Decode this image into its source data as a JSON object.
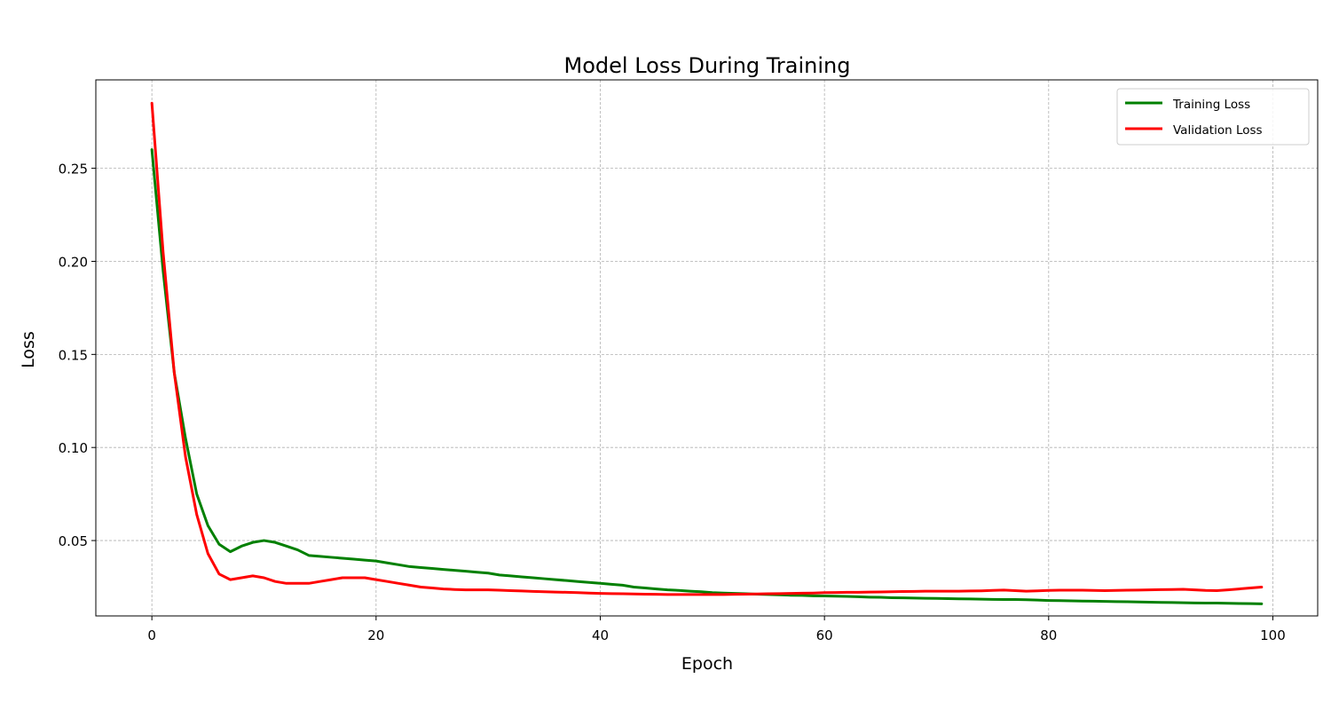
{
  "chart_data": {
    "type": "line",
    "title": "Model Loss During Training",
    "xlabel": "Epoch",
    "ylabel": "Loss",
    "xlim": [
      -5,
      104
    ],
    "ylim": [
      0.0095,
      0.2975
    ],
    "x_ticks": [
      0,
      20,
      40,
      60,
      80,
      100
    ],
    "y_ticks": [
      0.05,
      0.1,
      0.15,
      0.2,
      0.25
    ],
    "x_tick_labels": [
      "0",
      "20",
      "40",
      "60",
      "80",
      "100"
    ],
    "y_tick_labels": [
      "0.05",
      "0.10",
      "0.15",
      "0.20",
      "0.25"
    ],
    "grid": true,
    "legend_position": "top-right",
    "series": [
      {
        "name": "Training Loss",
        "color": "#008000",
        "x": [
          0,
          1,
          2,
          3,
          4,
          5,
          6,
          7,
          8,
          9,
          10,
          11,
          12,
          13,
          14,
          15,
          16,
          17,
          18,
          19,
          20,
          21,
          22,
          23,
          24,
          25,
          26,
          27,
          28,
          29,
          30,
          31,
          32,
          33,
          34,
          35,
          36,
          37,
          38,
          39,
          40,
          41,
          42,
          43,
          44,
          45,
          46,
          47,
          48,
          49,
          50,
          51,
          52,
          53,
          54,
          55,
          56,
          57,
          58,
          59,
          60,
          61,
          62,
          63,
          64,
          65,
          66,
          67,
          68,
          69,
          70,
          71,
          72,
          73,
          74,
          75,
          76,
          77,
          78,
          79,
          80,
          81,
          82,
          83,
          84,
          85,
          86,
          87,
          88,
          89,
          90,
          91,
          92,
          93,
          94,
          95,
          96,
          97,
          98,
          99
        ],
        "values": [
          0.26,
          0.195,
          0.14,
          0.105,
          0.075,
          0.058,
          0.048,
          0.044,
          0.047,
          0.049,
          0.05,
          0.049,
          0.047,
          0.045,
          0.042,
          0.0415,
          0.041,
          0.0405,
          0.04,
          0.0395,
          0.039,
          0.038,
          0.037,
          0.036,
          0.0355,
          0.035,
          0.0345,
          0.034,
          0.0335,
          0.033,
          0.0325,
          0.0315,
          0.031,
          0.0305,
          0.03,
          0.0295,
          0.029,
          0.0285,
          0.028,
          0.0275,
          0.027,
          0.0265,
          0.026,
          0.025,
          0.0245,
          0.024,
          0.0235,
          0.0232,
          0.0228,
          0.0225,
          0.022,
          0.0218,
          0.0216,
          0.0214,
          0.0212,
          0.021,
          0.0208,
          0.0206,
          0.0205,
          0.0203,
          0.0202,
          0.0201,
          0.02,
          0.0198,
          0.0196,
          0.0195,
          0.0193,
          0.0192,
          0.0191,
          0.019,
          0.0189,
          0.0188,
          0.0187,
          0.0186,
          0.0185,
          0.0184,
          0.0183,
          0.0183,
          0.0182,
          0.018,
          0.0178,
          0.0177,
          0.0176,
          0.0175,
          0.0174,
          0.0173,
          0.0172,
          0.0171,
          0.017,
          0.0169,
          0.0168,
          0.0167,
          0.0166,
          0.0165,
          0.0164,
          0.0164,
          0.0163,
          0.0162,
          0.0161,
          0.016
        ]
      },
      {
        "name": "Validation Loss",
        "color": "#ff0000",
        "x": [
          0,
          1,
          2,
          3,
          4,
          5,
          6,
          7,
          8,
          9,
          10,
          11,
          12,
          13,
          14,
          15,
          16,
          17,
          18,
          19,
          20,
          21,
          22,
          23,
          24,
          25,
          26,
          27,
          28,
          29,
          30,
          31,
          32,
          33,
          34,
          35,
          36,
          37,
          38,
          39,
          40,
          41,
          42,
          43,
          44,
          45,
          46,
          47,
          48,
          49,
          50,
          51,
          52,
          53,
          54,
          55,
          56,
          57,
          58,
          59,
          60,
          61,
          62,
          63,
          64,
          65,
          66,
          67,
          68,
          69,
          70,
          71,
          72,
          73,
          74,
          75,
          76,
          77,
          78,
          79,
          80,
          81,
          82,
          83,
          84,
          85,
          86,
          87,
          88,
          89,
          90,
          91,
          92,
          93,
          94,
          95,
          96,
          97,
          98,
          99
        ],
        "values": [
          0.285,
          0.205,
          0.14,
          0.095,
          0.064,
          0.043,
          0.032,
          0.029,
          0.03,
          0.031,
          0.03,
          0.028,
          0.027,
          0.027,
          0.027,
          0.028,
          0.029,
          0.03,
          0.03,
          0.03,
          0.029,
          0.028,
          0.027,
          0.026,
          0.025,
          0.0245,
          0.024,
          0.0237,
          0.0235,
          0.0235,
          0.0235,
          0.0233,
          0.0231,
          0.0229,
          0.0227,
          0.0225,
          0.0223,
          0.0222,
          0.022,
          0.0218,
          0.0216,
          0.0215,
          0.0214,
          0.0213,
          0.0212,
          0.0211,
          0.021,
          0.021,
          0.021,
          0.021,
          0.021,
          0.021,
          0.0211,
          0.0212,
          0.0213,
          0.0214,
          0.0215,
          0.0216,
          0.0217,
          0.0218,
          0.022,
          0.0221,
          0.0222,
          0.0222,
          0.0223,
          0.0224,
          0.0225,
          0.0226,
          0.0227,
          0.0228,
          0.0228,
          0.0228,
          0.0228,
          0.0229,
          0.023,
          0.0232,
          0.0234,
          0.0231,
          0.0228,
          0.023,
          0.0232,
          0.0233,
          0.0233,
          0.0233,
          0.0232,
          0.0231,
          0.0232,
          0.0233,
          0.0234,
          0.0235,
          0.0236,
          0.0237,
          0.0238,
          0.0235,
          0.0232,
          0.0231,
          0.0235,
          0.024,
          0.0245,
          0.025
        ]
      }
    ]
  }
}
